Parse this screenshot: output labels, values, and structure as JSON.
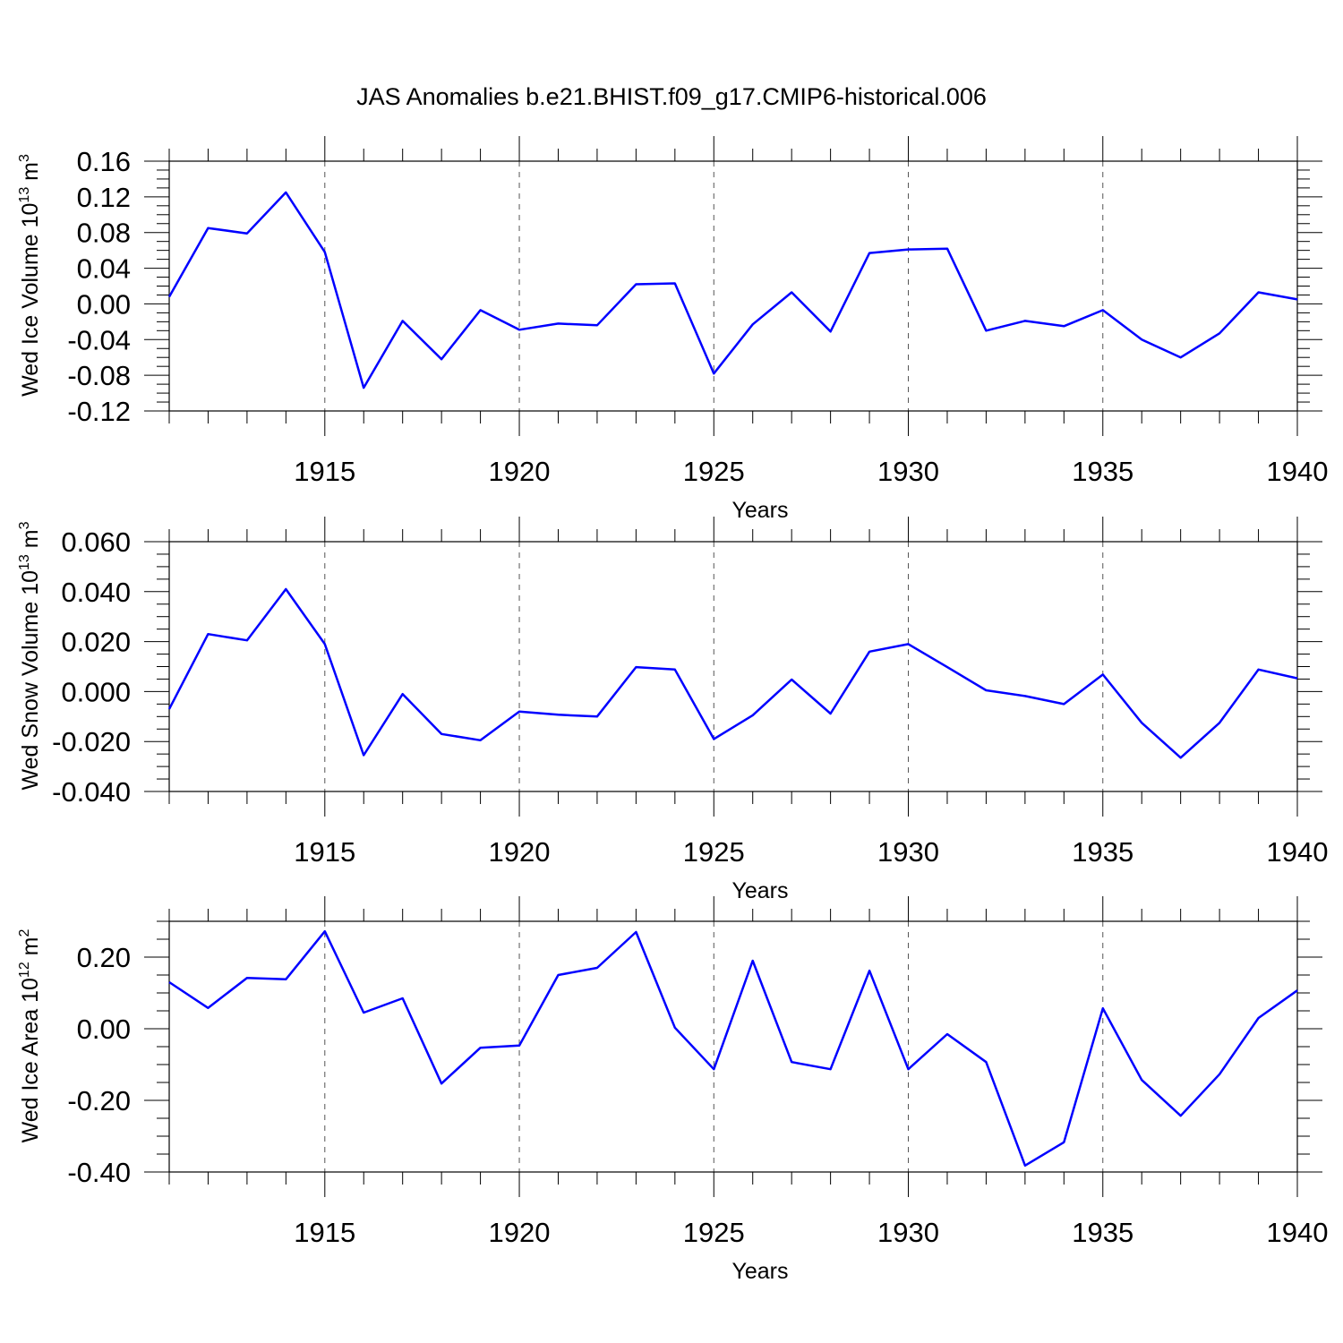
{
  "figure_title": "JAS Anomalies b.e21.BHIST.f09_g17.CMIP6-historical.006",
  "colors": {
    "series": "#0000ff",
    "frame": "#000000",
    "grid": "#555555"
  },
  "chart_data": [
    {
      "type": "line",
      "title": "JAS Anomalies b.e21.BHIST.f09_g17.CMIP6-historical.006",
      "xlabel": "Years",
      "ylabel": {
        "main": "Wed Ice Volume 10",
        "exponent": "13",
        "unit": "m",
        "unit_exponent": "3"
      },
      "xlim": [
        1911,
        1940
      ],
      "ylim": [
        -0.12,
        0.16
      ],
      "xticks": [
        1915,
        1920,
        1925,
        1930,
        1935,
        1940
      ],
      "xtick_labels": [
        "1915",
        "1920",
        "1925",
        "1930",
        "1935",
        "1940"
      ],
      "yticks": [
        -0.12,
        -0.08,
        -0.04,
        0.0,
        0.04,
        0.08,
        0.12,
        0.16
      ],
      "ytick_labels": [
        "-0.12",
        "-0.08",
        "-0.04",
        "0.00",
        "0.04",
        "0.08",
        "0.12",
        "0.16"
      ],
      "grid": "vertical dashed at major x ticks",
      "x": [
        1911,
        1912,
        1913,
        1914,
        1915,
        1916,
        1917,
        1918,
        1919,
        1920,
        1921,
        1922,
        1923,
        1924,
        1925,
        1926,
        1927,
        1928,
        1929,
        1930,
        1931,
        1932,
        1933,
        1934,
        1935,
        1936,
        1937,
        1938,
        1939,
        1940
      ],
      "series": [
        {
          "name": "Wed Ice Volume",
          "values": [
            0.008,
            0.085,
            0.079,
            0.125,
            0.058,
            -0.094,
            -0.019,
            -0.062,
            -0.007,
            -0.029,
            -0.022,
            -0.024,
            0.022,
            0.023,
            -0.078,
            -0.023,
            0.013,
            -0.031,
            0.057,
            0.061,
            0.062,
            -0.03,
            -0.019,
            -0.025,
            -0.007,
            -0.04,
            -0.06,
            -0.033,
            0.013,
            0.005
          ]
        }
      ]
    },
    {
      "type": "line",
      "xlabel": "Years",
      "ylabel": {
        "main": "Wed Snow Volume 10",
        "exponent": "13",
        "unit": "m",
        "unit_exponent": "3"
      },
      "xlim": [
        1911,
        1940
      ],
      "ylim": [
        -0.04,
        0.06
      ],
      "xticks": [
        1915,
        1920,
        1925,
        1930,
        1935,
        1940
      ],
      "xtick_labels": [
        "1915",
        "1920",
        "1925",
        "1930",
        "1935",
        "1940"
      ],
      "yticks": [
        -0.04,
        -0.02,
        0.0,
        0.02,
        0.04,
        0.06
      ],
      "ytick_labels": [
        "-0.040",
        "-0.020",
        "0.000",
        "0.020",
        "0.040",
        "0.060"
      ],
      "grid": "vertical dashed at major x ticks",
      "x": [
        1911,
        1912,
        1913,
        1914,
        1915,
        1916,
        1917,
        1918,
        1919,
        1920,
        1921,
        1922,
        1923,
        1924,
        1925,
        1926,
        1927,
        1928,
        1929,
        1930,
        1931,
        1932,
        1933,
        1934,
        1935,
        1936,
        1937,
        1938,
        1939,
        1940
      ],
      "series": [
        {
          "name": "Wed Snow Volume",
          "values": [
            -0.007,
            0.023,
            0.0205,
            0.041,
            0.019,
            -0.0255,
            -0.001,
            -0.017,
            -0.0195,
            -0.008,
            -0.0093,
            -0.01,
            0.0098,
            0.0088,
            -0.019,
            -0.0095,
            0.0048,
            -0.0088,
            0.016,
            0.019,
            0.0098,
            0.0005,
            -0.0018,
            -0.005,
            0.0068,
            -0.0125,
            -0.0265,
            -0.0125,
            0.0088,
            0.0053
          ]
        }
      ]
    },
    {
      "type": "line",
      "xlabel": "Years",
      "ylabel": {
        "main": "Wed Ice Area 10",
        "exponent": "12",
        "unit": "m",
        "unit_exponent": "2"
      },
      "xlim": [
        1911,
        1940
      ],
      "ylim": [
        -0.4,
        0.3
      ],
      "xticks": [
        1915,
        1920,
        1925,
        1930,
        1935,
        1940
      ],
      "xtick_labels": [
        "1915",
        "1920",
        "1925",
        "1930",
        "1935",
        "1940"
      ],
      "yticks": [
        -0.4,
        -0.2,
        0.0,
        0.2
      ],
      "ytick_labels": [
        "-0.40",
        "-0.20",
        "0.00",
        "0.20"
      ],
      "grid": "vertical dashed at major x ticks",
      "x": [
        1911,
        1912,
        1913,
        1914,
        1915,
        1916,
        1917,
        1918,
        1919,
        1920,
        1921,
        1922,
        1923,
        1924,
        1925,
        1926,
        1927,
        1928,
        1929,
        1930,
        1931,
        1932,
        1933,
        1934,
        1935,
        1936,
        1937,
        1938,
        1939,
        1940
      ],
      "series": [
        {
          "name": "Wed Ice Area",
          "values": [
            0.13,
            0.058,
            0.142,
            0.138,
            0.272,
            0.045,
            0.085,
            -0.153,
            -0.053,
            -0.047,
            0.15,
            0.17,
            0.27,
            0.003,
            -0.113,
            0.19,
            -0.093,
            -0.113,
            0.162,
            -0.113,
            -0.015,
            -0.093,
            -0.382,
            -0.317,
            0.057,
            -0.143,
            -0.243,
            -0.127,
            0.03,
            0.107
          ]
        }
      ]
    }
  ]
}
